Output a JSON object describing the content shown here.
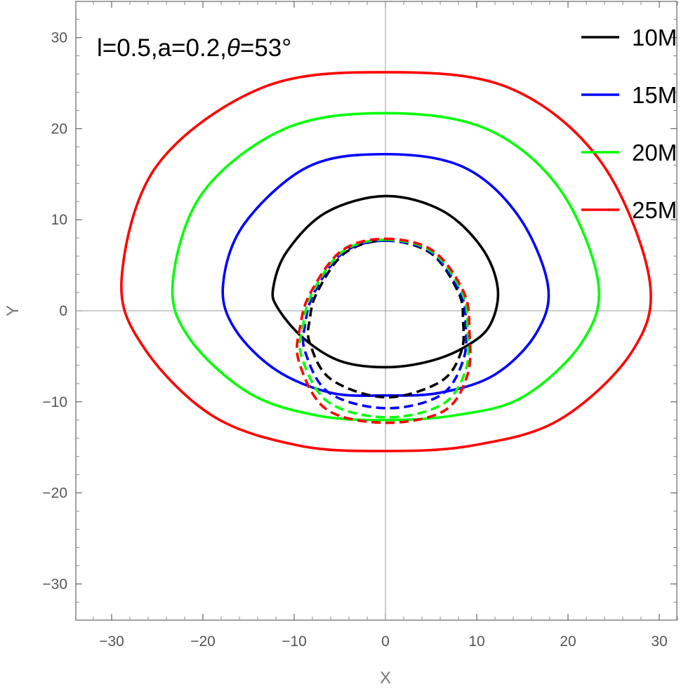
{
  "chart_data": {
    "type": "line",
    "title": "",
    "xlabel": "X",
    "ylabel": "Y",
    "xlim": [
      -34,
      32.8
    ],
    "ylim": [
      -34,
      34
    ],
    "xticks": [
      -30,
      -20,
      -10,
      0,
      10,
      20,
      30
    ],
    "yticks": [
      -30,
      -20,
      -10,
      0,
      10,
      20,
      30
    ],
    "xtick_labels": [
      "−30",
      "−20",
      "−10",
      "0",
      "10",
      "20",
      "30"
    ],
    "ytick_labels": [
      "−30",
      "−20",
      "−10",
      "0",
      "10",
      "20",
      "30"
    ],
    "annotation": {
      "parts": [
        {
          "text": "l=0.5,a=0.2,",
          "italic": false
        },
        {
          "text": "θ",
          "italic": true
        },
        {
          "text": "=53°",
          "italic": false
        }
      ]
    },
    "legend": {
      "placement": "top-right",
      "entries": [
        {
          "label": "10M",
          "color": "#000000"
        },
        {
          "label": "15M",
          "color": "#0000ff"
        },
        {
          "label": "20M",
          "color": "#00ff00"
        },
        {
          "label": "25M",
          "color": "#ff0000"
        }
      ]
    },
    "series": [
      {
        "label": "10M",
        "style": "solid",
        "color": "#000000",
        "points": [
          [
            0,
            12.6
          ],
          [
            6.2,
            11.0
          ],
          [
            10.5,
            7.0
          ],
          [
            12.3,
            2.5
          ],
          [
            11.5,
            -1.5
          ],
          [
            9.0,
            -3.8
          ],
          [
            5.0,
            -5.5
          ],
          [
            0,
            -6.2
          ],
          [
            -5.0,
            -5.5
          ],
          [
            -9.0,
            -3.0
          ],
          [
            -11.8,
            0.3
          ],
          [
            -12.3,
            2.5
          ],
          [
            -10.8,
            6.5
          ],
          [
            -6.5,
            10.8
          ]
        ]
      },
      {
        "label": "15M",
        "style": "solid",
        "color": "#0000ff",
        "points": [
          [
            0,
            17.2
          ],
          [
            8.5,
            15.8
          ],
          [
            14.5,
            10.5
          ],
          [
            17.8,
            2.8
          ],
          [
            16.5,
            -2.5
          ],
          [
            12.0,
            -7.0
          ],
          [
            6.0,
            -9.0
          ],
          [
            0,
            -9.3
          ],
          [
            -6.0,
            -9.0
          ],
          [
            -12.0,
            -6.5
          ],
          [
            -16.5,
            -2.0
          ],
          [
            -17.8,
            2.8
          ],
          [
            -15.5,
            9.5
          ],
          [
            -8.5,
            15.8
          ]
        ]
      },
      {
        "label": "20M",
        "style": "solid",
        "color": "#00ff00",
        "points": [
          [
            0,
            21.7
          ],
          [
            11.0,
            20.0
          ],
          [
            19.0,
            13.5
          ],
          [
            23.3,
            3.2
          ],
          [
            21.5,
            -3.5
          ],
          [
            15.0,
            -9.5
          ],
          [
            7.5,
            -11.5
          ],
          [
            0,
            -12.0
          ],
          [
            -7.5,
            -11.5
          ],
          [
            -15.0,
            -9.0
          ],
          [
            -21.5,
            -3.0
          ],
          [
            -23.3,
            3.2
          ],
          [
            -20.0,
            13.0
          ],
          [
            -11.0,
            20.0
          ]
        ]
      },
      {
        "label": "25M",
        "style": "solid",
        "color": "#ff0000",
        "points": [
          [
            0,
            26.2
          ],
          [
            13.5,
            24.5
          ],
          [
            23.5,
            16.5
          ],
          [
            28.9,
            3.6
          ],
          [
            27.0,
            -4.5
          ],
          [
            19.0,
            -12.0
          ],
          [
            9.5,
            -14.8
          ],
          [
            0,
            -15.4
          ],
          [
            -9.5,
            -14.8
          ],
          [
            -19.0,
            -11.5
          ],
          [
            -26.5,
            -4.0
          ],
          [
            -28.9,
            3.6
          ],
          [
            -25.0,
            16.0
          ],
          [
            -13.5,
            24.5
          ]
        ]
      },
      {
        "label": "10M",
        "style": "dashed",
        "color": "#000000",
        "points": [
          [
            0,
            7.7
          ],
          [
            5.0,
            6.3
          ],
          [
            8.0,
            2.0
          ],
          [
            8.5,
            -1.0
          ],
          [
            8.3,
            -4.5
          ],
          [
            6.0,
            -7.8
          ],
          [
            0,
            -9.5
          ],
          [
            -6.0,
            -7.5
          ],
          [
            -8.3,
            -3.5
          ],
          [
            -8.3,
            -1.0
          ],
          [
            -7.5,
            2.0
          ],
          [
            -4.5,
            6.3
          ]
        ]
      },
      {
        "label": "15M",
        "style": "dashed",
        "color": "#0000ff",
        "points": [
          [
            0,
            7.7
          ],
          [
            5.0,
            6.4
          ],
          [
            8.2,
            2.0
          ],
          [
            8.8,
            -1.5
          ],
          [
            8.5,
            -5.5
          ],
          [
            6.0,
            -9.3
          ],
          [
            0,
            -10.7
          ],
          [
            -6.2,
            -9.0
          ],
          [
            -8.8,
            -4.5
          ],
          [
            -8.8,
            -1.5
          ],
          [
            -7.8,
            2.0
          ],
          [
            -4.6,
            6.4
          ]
        ]
      },
      {
        "label": "20M",
        "style": "dashed",
        "color": "#00ff00",
        "points": [
          [
            0,
            7.8
          ],
          [
            5.1,
            6.5
          ],
          [
            8.4,
            2.0
          ],
          [
            9.0,
            -2.0
          ],
          [
            8.8,
            -6.5
          ],
          [
            6.2,
            -10.3
          ],
          [
            0,
            -11.7
          ],
          [
            -6.3,
            -10.0
          ],
          [
            -9.2,
            -5.0
          ],
          [
            -9.0,
            -1.5
          ],
          [
            -8.0,
            2.0
          ],
          [
            -4.7,
            6.5
          ]
        ]
      },
      {
        "label": "25M",
        "style": "dashed",
        "color": "#ff0000",
        "points": [
          [
            0,
            7.9
          ],
          [
            5.2,
            6.6
          ],
          [
            8.6,
            2.0
          ],
          [
            9.2,
            -2.3
          ],
          [
            9.0,
            -7.0
          ],
          [
            6.4,
            -11.0
          ],
          [
            0,
            -12.3
          ],
          [
            -6.5,
            -10.8
          ],
          [
            -9.5,
            -5.5
          ],
          [
            -9.3,
            -1.5
          ],
          [
            -8.2,
            2.0
          ],
          [
            -4.8,
            6.6
          ]
        ]
      }
    ]
  }
}
